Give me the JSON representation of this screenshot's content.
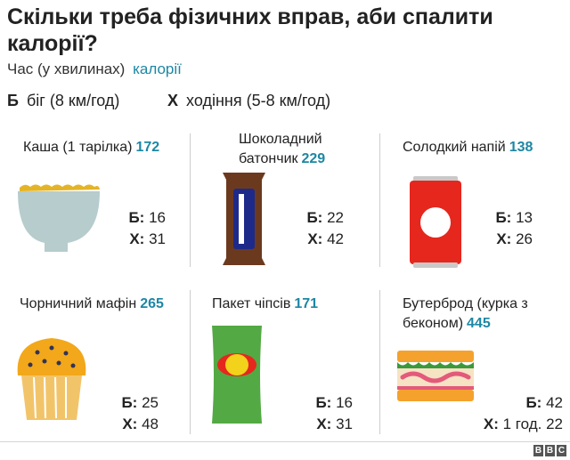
{
  "header": {
    "title": "Скільки треба фізичних вправ, аби спалити калорії?",
    "subtitle_time": "Час (у хвилинах)",
    "subtitle_calories": "калорії"
  },
  "legend": {
    "run_key": "Б",
    "run_label": "біг (8 км/год)",
    "walk_key": "Х",
    "walk_label": "ходіння (5-8 км/год)"
  },
  "colors": {
    "calorie_accent": "#1d87a4",
    "bowl": "#b7cccc",
    "cereal": "#e4b427",
    "chocolate_wrapper": "#6b3a1e",
    "chocolate": "#1e2a8a",
    "can": "#e5271e",
    "muffin": "#f2a81a",
    "chips_bag": "#53a943",
    "sandwich_bread": "#f4a22d"
  },
  "cards": [
    {
      "name_line1": "Каша (1 тарілка)",
      "name_line2": "",
      "calories": "172",
      "run_key": "Б:",
      "run": "16",
      "walk_key": "Х:",
      "walk": "31",
      "icon": "cereal-bowl-icon"
    },
    {
      "name_line1": "Шоколадний",
      "name_line2": "батончик",
      "calories": "229",
      "run_key": "Б:",
      "run": "22",
      "walk_key": "Х:",
      "walk": "42",
      "icon": "chocolate-bar-icon"
    },
    {
      "name_line1": "Солодкий напій",
      "name_line2": "",
      "calories": "138",
      "run_key": "Б:",
      "run": "13",
      "walk_key": "Х:",
      "walk": "26",
      "icon": "soda-can-icon"
    },
    {
      "name_line1": "Чорничний мафін",
      "name_line2": "",
      "calories": "265",
      "run_key": "Б:",
      "run": "25",
      "walk_key": "Х:",
      "walk": "48",
      "icon": "muffin-icon"
    },
    {
      "name_line1": "Пакет чіпсів",
      "name_line2": "",
      "calories": "171",
      "run_key": "Б:",
      "run": "16",
      "walk_key": "Х:",
      "walk": "31",
      "icon": "chips-bag-icon"
    },
    {
      "name_line1": "Бутерброд (курка з",
      "name_line2": "беконом)",
      "calories": "445",
      "run_key": "Б:",
      "run": "42",
      "walk_key": "Х:",
      "walk": "1 год. 22",
      "icon": "sandwich-icon"
    }
  ],
  "footer": {
    "logo": [
      "B",
      "B",
      "C"
    ]
  }
}
